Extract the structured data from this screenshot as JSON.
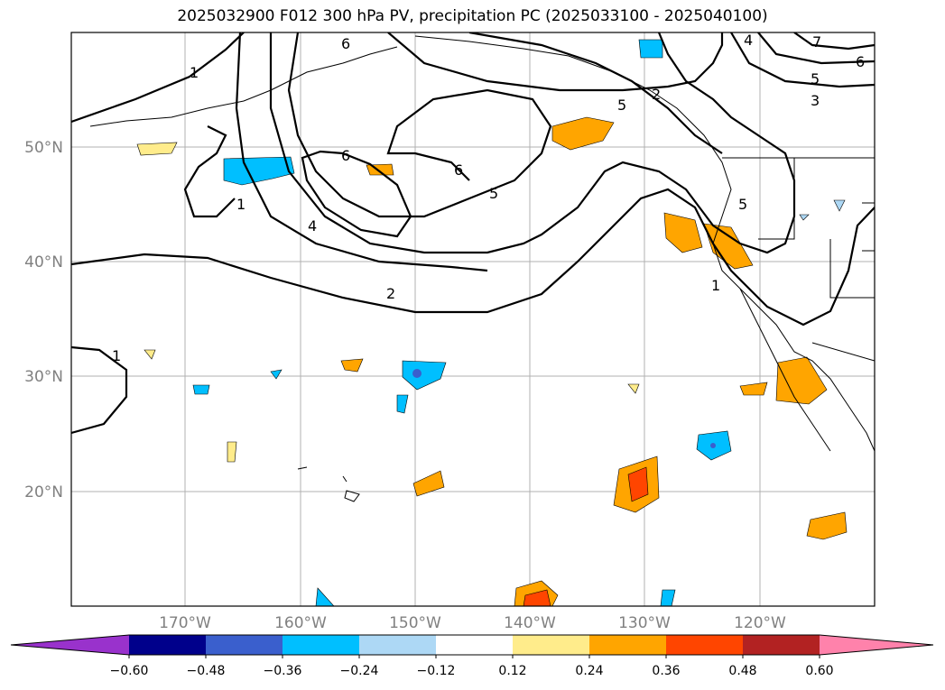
{
  "title": "2025032900 F012 300 hPa PV, precipitation PC (2025033100 - 2025040100)",
  "lat_labels": [
    "50°N",
    "40°N",
    "30°N",
    "20°N"
  ],
  "lon_labels": [
    "170°W",
    "160°W",
    "150°W",
    "140°W",
    "130°W",
    "120°W"
  ],
  "contour_labels": [
    "6",
    "1",
    "1",
    "1",
    "6",
    "6",
    "5",
    "4",
    "2",
    "5",
    "1",
    "2",
    "6",
    "5",
    "3",
    "7",
    "4",
    "5"
  ],
  "colorbar": {
    "ticks": [
      "−0.60",
      "−0.48",
      "−0.36",
      "−0.24",
      "−0.12",
      "0.12",
      "0.24",
      "0.36",
      "0.48",
      "0.60"
    ],
    "colors": [
      "#9932cc",
      "#00008b",
      "#3a5fcd",
      "#00bfff",
      "#add8f5",
      "#ffffff",
      "#ffec8b",
      "#ffa500",
      "#ff4500",
      "#b22222",
      "#ff82ab"
    ]
  }
}
